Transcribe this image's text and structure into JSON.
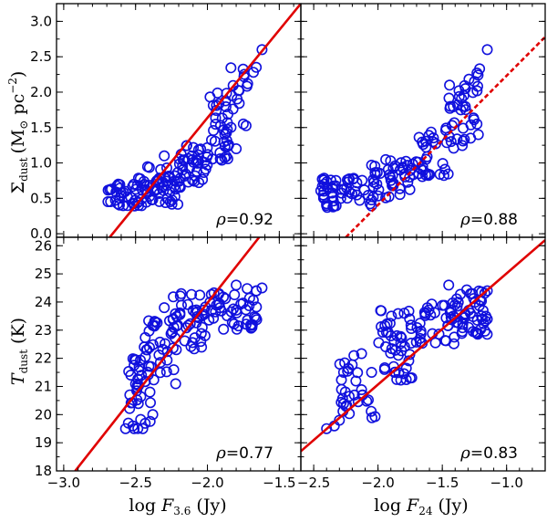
{
  "chart_data": [
    {
      "id": "top-left",
      "type": "scatter",
      "xlim": [
        -3.05,
        -1.35
      ],
      "ylim": [
        -0.05,
        3.25
      ],
      "yticks": [
        0.0,
        0.5,
        1.0,
        1.5,
        2.0,
        2.5,
        3.0
      ],
      "ytick_labels": [
        "0.0",
        "0.5",
        "1.0",
        "1.5",
        "2.0",
        "2.5",
        "3.0"
      ],
      "ylabel": "Σdust (M⊙ pc−2)",
      "correlation": "0.92",
      "fit": {
        "p1": [
          -2.68,
          -0.05
        ],
        "p2": [
          -1.35,
          3.25
        ],
        "style": "solid"
      },
      "seed": 11,
      "cloud": [
        [
          -2.7,
          -2.45,
          0.38,
          0.72,
          30
        ],
        [
          -2.5,
          -2.2,
          0.4,
          0.95,
          55
        ],
        [
          -2.2,
          -2.0,
          0.65,
          1.25,
          40
        ],
        [
          -2.0,
          -1.85,
          1.0,
          2.0,
          35
        ],
        [
          -1.85,
          -1.7,
          1.5,
          2.35,
          12
        ]
      ],
      "points": [
        [
          -1.62,
          2.6
        ],
        [
          -1.66,
          2.35
        ],
        [
          -1.68,
          2.28
        ],
        [
          -1.72,
          2.12
        ],
        [
          -1.78,
          2.02
        ],
        [
          -1.83,
          1.95
        ],
        [
          -1.75,
          1.55
        ],
        [
          -1.8,
          1.2
        ],
        [
          -2.3,
          1.1
        ],
        [
          -2.62,
          0.7
        ]
      ]
    },
    {
      "id": "top-right",
      "type": "scatter",
      "xlim": [
        -2.6,
        -0.7
      ],
      "ylim": [
        -0.05,
        3.25
      ],
      "correlation": "0.88",
      "fit": {
        "p1": [
          -2.25,
          -0.05
        ],
        "p2": [
          -0.7,
          2.78
        ],
        "style": "dashed"
      },
      "seed": 23,
      "cloud": [
        [
          -2.45,
          -2.05,
          0.36,
          0.8,
          50
        ],
        [
          -2.05,
          -1.7,
          0.5,
          1.05,
          45
        ],
        [
          -1.7,
          -1.45,
          0.8,
          1.5,
          30
        ],
        [
          -1.45,
          -1.3,
          1.2,
          2.1,
          22
        ],
        [
          -1.35,
          -1.2,
          1.4,
          2.3,
          10
        ]
      ],
      "points": [
        [
          -1.15,
          2.6
        ],
        [
          -1.21,
          2.33
        ],
        [
          -1.23,
          2.27
        ],
        [
          -1.25,
          2.15
        ],
        [
          -1.32,
          2.05
        ],
        [
          -1.37,
          2.02
        ],
        [
          -1.23,
          1.55
        ],
        [
          -1.22,
          1.4
        ],
        [
          -1.28,
          1.35
        ],
        [
          -1.88,
          0.7
        ],
        [
          -2.4,
          0.4
        ]
      ]
    },
    {
      "id": "bottom-left",
      "type": "scatter",
      "xlim": [
        -3.05,
        -1.35
      ],
      "ylim": [
        18.0,
        26.3
      ],
      "yticks": [
        18,
        19,
        20,
        21,
        22,
        23,
        24,
        25,
        26
      ],
      "ytick_labels": [
        "18",
        "19",
        "20",
        "21",
        "22",
        "23",
        "24",
        "25",
        "26"
      ],
      "xticks": [
        -3.0,
        -2.5,
        -2.0,
        -1.5
      ],
      "xtick_labels": [
        "−3.0",
        "−2.5",
        "−2.0",
        "−1.5"
      ],
      "xlabel": "log F3.6 (Jy)",
      "ylabel": "Tdust (K)",
      "correlation": "0.77",
      "fit": {
        "p1": [
          -2.92,
          18.0
        ],
        "p2": [
          -1.64,
          26.3
        ],
        "style": "solid"
      },
      "seed": 37,
      "cloud": [
        [
          -2.55,
          -2.35,
          19.5,
          22.0,
          30
        ],
        [
          -2.45,
          -2.2,
          21.0,
          23.5,
          35
        ],
        [
          -2.25,
          -2.0,
          22.3,
          24.3,
          40
        ],
        [
          -2.0,
          -1.65,
          23.0,
          24.5,
          45
        ]
      ],
      "points": [
        [
          -2.57,
          19.5
        ],
        [
          -2.55,
          19.7
        ],
        [
          -2.51,
          19.5
        ],
        [
          -2.54,
          20.7
        ],
        [
          -2.45,
          19.5
        ],
        [
          -2.38,
          20.0
        ],
        [
          -2.42,
          22.3
        ],
        [
          -2.44,
          22.4
        ],
        [
          -2.3,
          23.8
        ],
        [
          -2.1,
          23.7
        ],
        [
          -1.8,
          24.6
        ],
        [
          -1.62,
          24.5
        ],
        [
          -1.66,
          24.4
        ],
        [
          -1.92,
          24.3
        ],
        [
          -2.4,
          20.8
        ]
      ]
    },
    {
      "id": "bottom-right",
      "type": "scatter",
      "xlim": [
        -2.6,
        -0.7
      ],
      "ylim": [
        18.0,
        26.3
      ],
      "xticks": [
        -2.5,
        -2.0,
        -1.5,
        -1.0
      ],
      "xtick_labels": [
        "−2.5",
        "−2.0",
        "−1.5",
        "−1.0"
      ],
      "xlabel": "log F24 (Jy)",
      "correlation": "0.83",
      "fit": {
        "p1": [
          -2.6,
          18.7
        ],
        "p2": [
          -0.7,
          26.2
        ],
        "style": "solid"
      },
      "seed": 53,
      "cloud": [
        [
          -2.3,
          -2.0,
          19.8,
          22.5,
          30
        ],
        [
          -2.0,
          -1.7,
          21.0,
          23.8,
          45
        ],
        [
          -1.7,
          -1.4,
          22.5,
          24.0,
          35
        ],
        [
          -1.4,
          -1.15,
          22.8,
          24.5,
          45
        ]
      ],
      "points": [
        [
          -2.4,
          19.5
        ],
        [
          -2.34,
          19.6
        ],
        [
          -2.3,
          19.8
        ],
        [
          -2.25,
          20.3
        ],
        [
          -2.12,
          20.7
        ],
        [
          -2.05,
          21.5
        ],
        [
          -1.9,
          22.8
        ],
        [
          -1.45,
          24.6
        ],
        [
          -1.28,
          24.3
        ],
        [
          -1.15,
          24.4
        ],
        [
          -1.98,
          23.7
        ]
      ]
    }
  ],
  "labels": {
    "ylabel_top_main": "Σ",
    "ylabel_top_sub": "dust",
    "ylabel_top_unit": "(M",
    "ylabel_top_sun": "⊙",
    "ylabel_top_pc": " pc",
    "ylabel_top_exp": "−2",
    "ylabel_top_close": ")",
    "ylabel_bottom_main": "T",
    "ylabel_bottom_sub": "dust",
    "ylabel_bottom_unit": " (K)",
    "xlabel_left_pre": "log ",
    "xlabel_left_var": "F",
    "xlabel_left_sub": "3.6",
    "xlabel_left_unit": " (Jy)",
    "xlabel_right_pre": "log ",
    "xlabel_right_var": "F",
    "xlabel_right_sub": "24",
    "xlabel_right_unit": " (Jy)",
    "rho_symbol": "ρ",
    "rho_eq": " = "
  },
  "colors": {
    "points": "#1010dd",
    "fit": "#e00000"
  }
}
